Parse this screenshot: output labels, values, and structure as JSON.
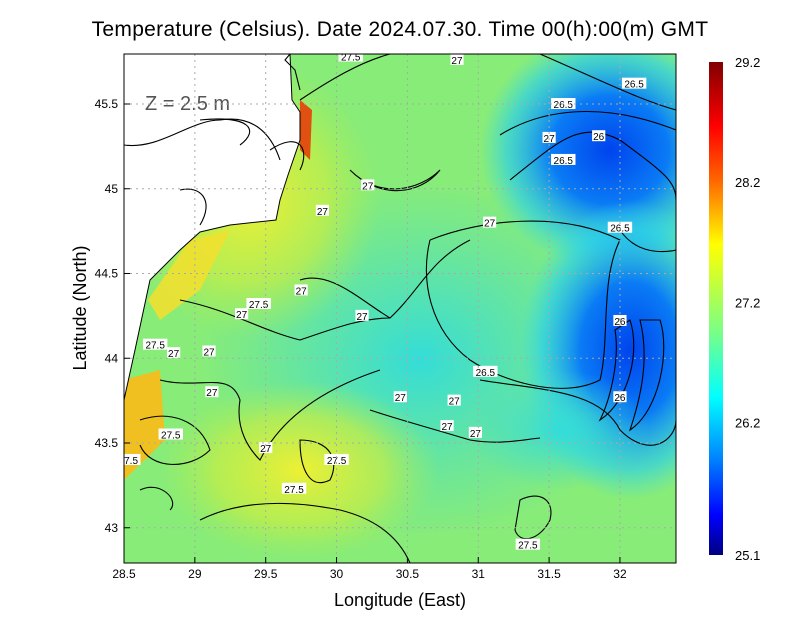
{
  "title": "Temperature (Celsius). Date 2024.07.30. Time 00(h):00(m) GMT",
  "depth_label": "Z = 2.5 m",
  "xaxis": {
    "label": "Longitude (East)",
    "ticks": [
      "28.5",
      "29",
      "29.5",
      "30",
      "30.5",
      "31",
      "31.5",
      "32"
    ]
  },
  "yaxis": {
    "label": "Latitude (North)",
    "ticks": [
      "45.5",
      "45",
      "44.5",
      "44",
      "43.5",
      "43"
    ]
  },
  "colorbar": {
    "labels": [
      "29.2",
      "28.2",
      "27.2",
      "26.2",
      "25.1"
    ],
    "min": 25.1,
    "max": 29.2,
    "colors": [
      "#800000",
      "#ff0000",
      "#ff6600",
      "#ffff00",
      "#99ff66",
      "#00ffff",
      "#0099ff",
      "#0000ff",
      "#000080"
    ]
  },
  "contour_labels": [
    {
      "text": "27.5",
      "lon": 30.1,
      "lat": 45.78
    },
    {
      "text": "27",
      "lon": 30.85,
      "lat": 45.76
    },
    {
      "text": "26.5",
      "lon": 32.1,
      "lat": 45.62
    },
    {
      "text": "26.5",
      "lon": 31.6,
      "lat": 45.5
    },
    {
      "text": "27",
      "lon": 31.5,
      "lat": 45.3
    },
    {
      "text": "26",
      "lon": 31.85,
      "lat": 45.31
    },
    {
      "text": "26.5",
      "lon": 31.6,
      "lat": 45.17
    },
    {
      "text": "27",
      "lon": 30.22,
      "lat": 45.02
    },
    {
      "text": "27",
      "lon": 29.9,
      "lat": 44.87
    },
    {
      "text": "27",
      "lon": 31.08,
      "lat": 44.8
    },
    {
      "text": "26.5",
      "lon": 32.0,
      "lat": 44.77
    },
    {
      "text": "27",
      "lon": 29.75,
      "lat": 44.4
    },
    {
      "text": "27.5",
      "lon": 29.45,
      "lat": 44.32
    },
    {
      "text": "27",
      "lon": 29.33,
      "lat": 44.26
    },
    {
      "text": "27",
      "lon": 30.18,
      "lat": 44.25
    },
    {
      "text": "26",
      "lon": 32.0,
      "lat": 44.22
    },
    {
      "text": "27.5",
      "lon": 28.72,
      "lat": 44.08
    },
    {
      "text": "27",
      "lon": 28.85,
      "lat": 44.03
    },
    {
      "text": "27",
      "lon": 29.1,
      "lat": 44.04
    },
    {
      "text": "26.5",
      "lon": 31.05,
      "lat": 43.92
    },
    {
      "text": "27",
      "lon": 29.12,
      "lat": 43.8
    },
    {
      "text": "27",
      "lon": 30.45,
      "lat": 43.77
    },
    {
      "text": "27",
      "lon": 30.83,
      "lat": 43.75
    },
    {
      "text": "26",
      "lon": 32.0,
      "lat": 43.77
    },
    {
      "text": "27",
      "lon": 30.78,
      "lat": 43.6
    },
    {
      "text": "27",
      "lon": 30.98,
      "lat": 43.56
    },
    {
      "text": "27.5",
      "lon": 28.83,
      "lat": 43.55
    },
    {
      "text": "27",
      "lon": 29.5,
      "lat": 43.47
    },
    {
      "text": "7.5",
      "lon": 28.55,
      "lat": 43.4
    },
    {
      "text": "27.5",
      "lon": 30.0,
      "lat": 43.4
    },
    {
      "text": "27.5",
      "lon": 29.7,
      "lat": 43.23
    },
    {
      "text": "27.5",
      "lon": 31.35,
      "lat": 42.9
    }
  ]
}
